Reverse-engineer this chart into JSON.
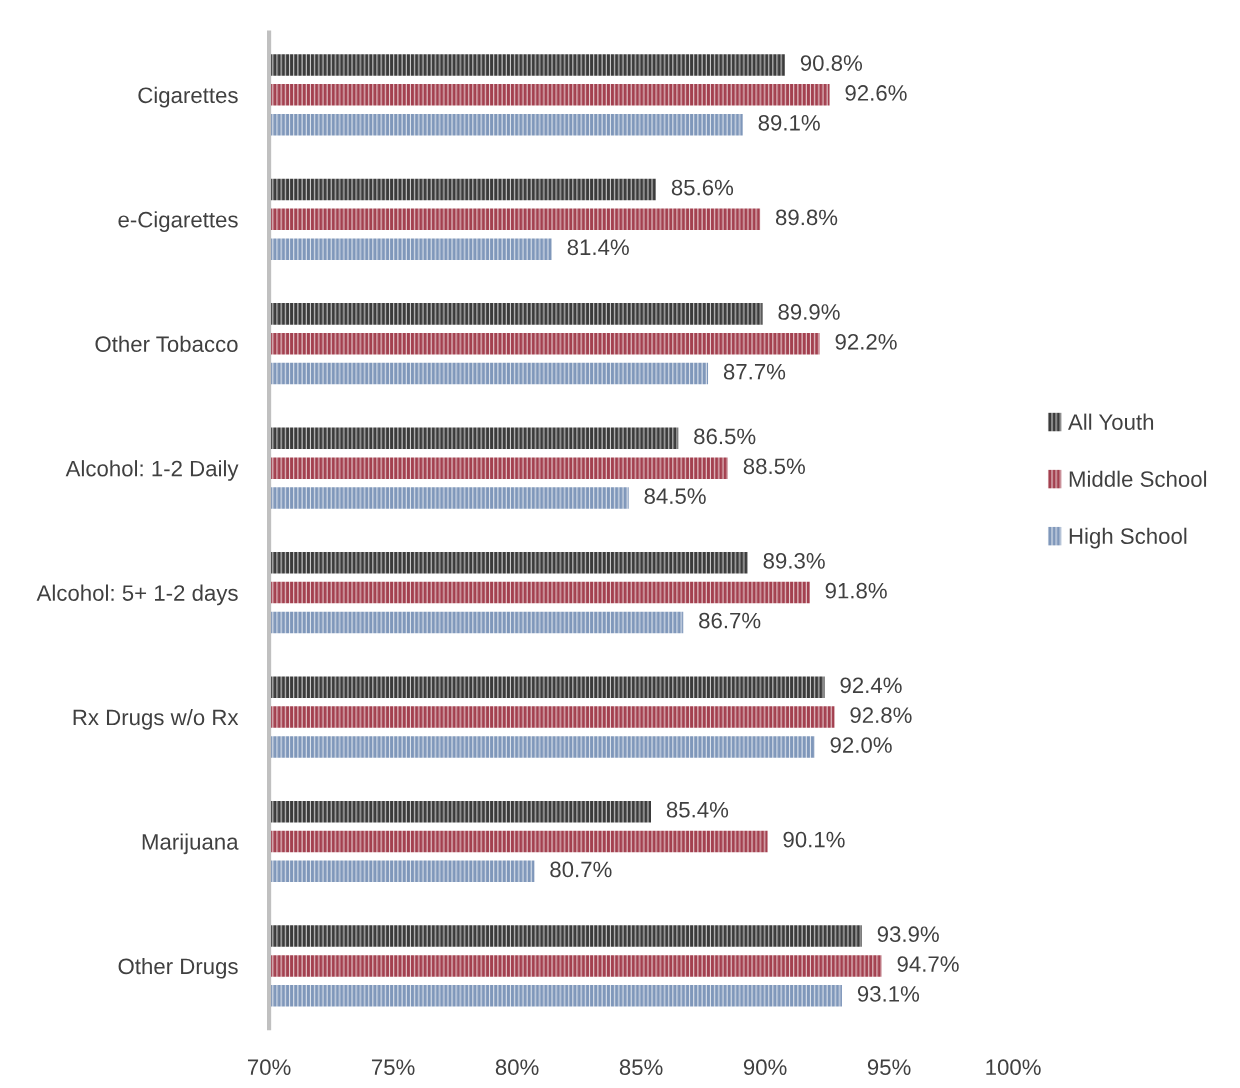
{
  "chart_data": {
    "type": "bar",
    "orientation": "horizontal",
    "categories": [
      "Cigarettes",
      "e-Cigarettes",
      "Other Tobacco",
      "Alcohol: 1-2 Daily",
      "Alcohol: 5+ 1-2 days",
      "Rx Drugs w/o Rx",
      "Marijuana",
      "Other Drugs"
    ],
    "series": [
      {
        "name": "All Youth",
        "color": "#3b3b3b",
        "values": [
          90.8,
          85.6,
          89.9,
          86.5,
          89.3,
          92.4,
          85.4,
          93.9
        ],
        "value_labels": [
          "90.8%",
          "85.6%",
          "89.9%",
          "86.5%",
          "89.3%",
          "92.4%",
          "85.4%",
          "93.9%"
        ]
      },
      {
        "name": "Middle School",
        "color": "#a3404f",
        "values": [
          92.6,
          89.8,
          92.2,
          88.5,
          91.8,
          92.8,
          90.1,
          94.7
        ],
        "value_labels": [
          "92.6%",
          "89.8%",
          "92.2%",
          "88.5%",
          "91.8%",
          "92.8%",
          "90.1%",
          "94.7%"
        ]
      },
      {
        "name": "High School",
        "color": "#7f97ba",
        "values": [
          89.1,
          81.4,
          87.7,
          84.5,
          86.7,
          92.0,
          80.7,
          93.1
        ],
        "value_labels": [
          "89.1%",
          "81.4%",
          "87.7%",
          "84.5%",
          "86.7%",
          "92.0%",
          "80.7%",
          "93.1%"
        ]
      }
    ],
    "xlim": [
      70,
      100
    ],
    "xticks": [
      {
        "value": 70,
        "label": "70%"
      },
      {
        "value": 75,
        "label": "75%"
      },
      {
        "value": 80,
        "label": "80%"
      },
      {
        "value": 85,
        "label": "85%"
      },
      {
        "value": 90,
        "label": "90%"
      },
      {
        "value": 95,
        "label": "95%"
      },
      {
        "value": 100,
        "label": "100%"
      }
    ],
    "grid": false,
    "legend": "right"
  }
}
